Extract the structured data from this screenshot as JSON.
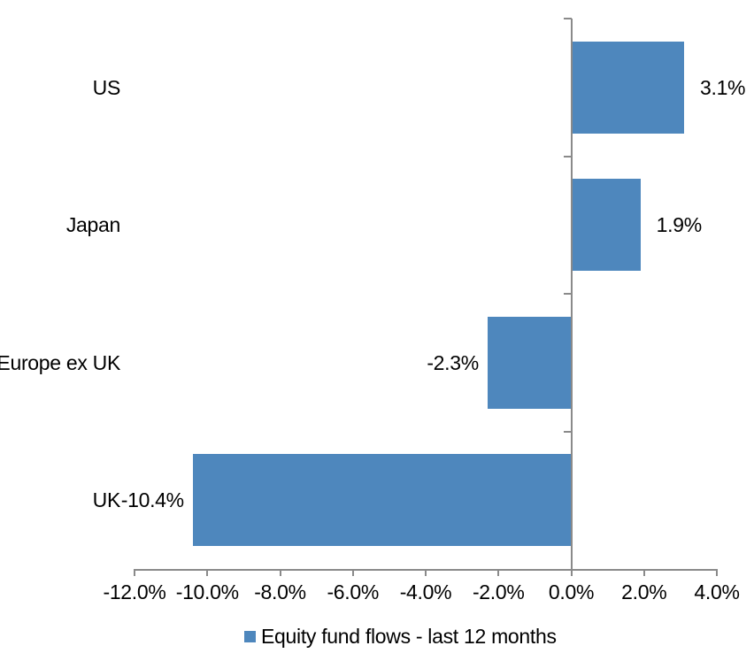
{
  "chart_data": {
    "type": "bar",
    "orientation": "horizontal",
    "categories": [
      "US",
      "Japan",
      "Europe ex UK",
      "UK"
    ],
    "values": [
      3.1,
      1.9,
      -2.3,
      -10.4
    ],
    "value_labels": [
      "3.1%",
      "1.9%",
      "-2.3%",
      "-10.4%"
    ],
    "series": [
      {
        "name": "Equity fund flows - last 12 months",
        "values": [
          3.1,
          1.9,
          -2.3,
          -10.4
        ]
      }
    ],
    "title": "",
    "xlabel": "",
    "ylabel": "",
    "xlim": [
      -12,
      4
    ],
    "x_tick_values": [
      -12,
      -10,
      -8,
      -6,
      -4,
      -2,
      0,
      2,
      4
    ],
    "x_tick_labels": [
      "-12.0%",
      "-10.0%",
      "-8.0%",
      "-6.0%",
      "-4.0%",
      "-2.0%",
      "0.0%",
      "2.0%",
      "4.0%"
    ],
    "grid": "off",
    "data_label_position": "outside-end",
    "colors": {
      "bar": "#4e87bd",
      "axis": "#8a8a8a",
      "text": "#000000",
      "background": "#ffffff"
    },
    "legend": {
      "position": "bottom",
      "swatch_color": "#4e87bd",
      "label": "Equity fund flows - last 12 months"
    }
  }
}
